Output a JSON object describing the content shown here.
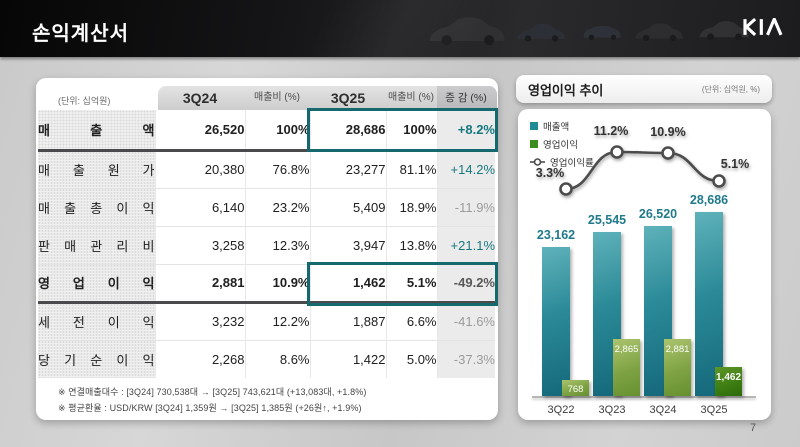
{
  "header": {
    "title": "손익계산서",
    "logo": "KIA"
  },
  "table": {
    "unit_note": "(단위: 십억원)",
    "columns": [
      "3Q24",
      "매출비 (%)",
      "3Q25",
      "매출비 (%)",
      "증 감 (%)"
    ],
    "rows": [
      {
        "label": "매출액",
        "q24": "26,520",
        "r24": "100%",
        "q25": "28,686",
        "r25": "100%",
        "delta": "+8.2%",
        "delta_color": "#15787e"
      },
      {
        "label": "매출원가",
        "q24": "20,380",
        "r24": "76.8%",
        "q25": "23,277",
        "r25": "81.1%",
        "delta": "+14.2%",
        "delta_color": "#15787e"
      },
      {
        "label": "매출총이익",
        "q24": "6,140",
        "r24": "23.2%",
        "q25": "5,409",
        "r25": "18.9%",
        "delta": "-11.9%",
        "delta_color": "#9b9b9b"
      },
      {
        "label": "판매관리비",
        "q24": "3,258",
        "r24": "12.3%",
        "q25": "3,947",
        "r25": "13.8%",
        "delta": "+21.1%",
        "delta_color": "#15787e"
      },
      {
        "label": "영업이익",
        "q24": "2,881",
        "r24": "10.9%",
        "q25": "1,462",
        "r25": "5.1%",
        "delta": "-49.2%",
        "delta_color": "#585858"
      },
      {
        "label": "세전이익",
        "q24": "3,232",
        "r24": "12.2%",
        "q25": "1,887",
        "r25": "6.6%",
        "delta": "-41.6%",
        "delta_color": "#9b9b9b"
      },
      {
        "label": "당기순이익",
        "q24": "2,268",
        "r24": "8.6%",
        "q25": "1,422",
        "r25": "5.0%",
        "delta": "-37.3%",
        "delta_color": "#9b9b9b"
      }
    ],
    "footnotes": [
      "※ 연결매출대수 : [3Q24] 730,538대  →  [3Q25] 743,621대 (+13,083대, +1.8%)",
      "※ 평균환율 : USD/KRW [3Q24] 1,359원  →  [3Q25] 1,385원 (+26원↑, +1.9%)"
    ]
  },
  "chart_data": {
    "type": "bar+line",
    "title": "영업이익 추이",
    "unit_note": "(단위: 십억원, %)",
    "categories": [
      "3Q22",
      "3Q23",
      "3Q24",
      "3Q25"
    ],
    "series": [
      {
        "name": "매출액",
        "type": "bar",
        "values": [
          23162,
          25545,
          26520,
          28686
        ],
        "color": "#1f8a96"
      },
      {
        "name": "영업이익",
        "type": "bar",
        "values": [
          768,
          2865,
          2881,
          1462
        ],
        "color": "#3d8b1e",
        "highlight_last_color": "#3c7d12"
      },
      {
        "name": "영업이익률",
        "type": "line",
        "values": [
          3.3,
          11.2,
          10.9,
          5.1
        ],
        "unit": "%",
        "color": "#4c4c4c"
      }
    ],
    "legend_position": "top-left",
    "grid": false
  },
  "page_number": "7"
}
